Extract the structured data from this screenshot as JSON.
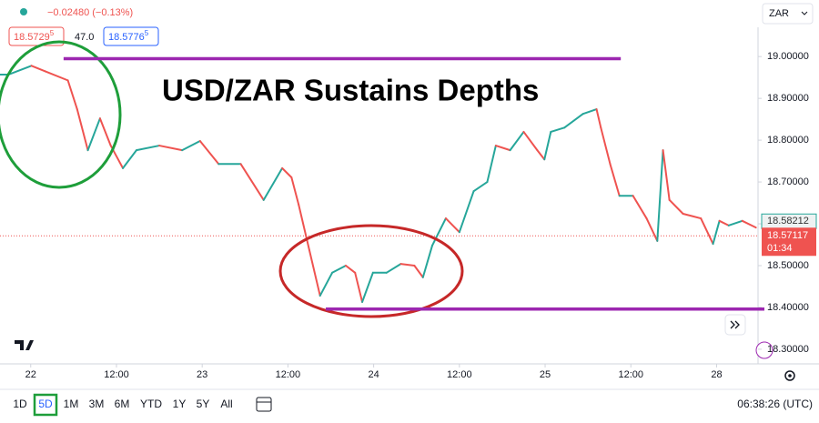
{
  "toolbar": {
    "change": "−0.02480 (−0.13%)",
    "bid": {
      "main": "18.5729",
      "pip": "5"
    },
    "spread": "47.0",
    "ask": {
      "main": "18.5776",
      "pip": "5"
    },
    "currency": "ZAR"
  },
  "chart_data": {
    "type": "line",
    "title": "USD/ZAR Sustains Depths",
    "x": [
      -4.3,
      -3.1,
      0.1,
      2.0,
      5.2,
      6.5,
      8.0,
      9.7,
      11.2,
      12.9,
      14.8,
      18.0,
      21.2,
      23.7,
      26.3,
      29.4,
      32.6,
      35.2,
      36.5,
      37.5,
      39.0,
      40.5,
      42.2,
      44.1,
      45.4,
      46.4,
      47.9,
      49.8,
      51.8,
      53.7,
      54.9,
      56.2,
      58.1,
      60.0,
      62.0,
      63.9,
      65.1,
      67.1,
      69.0,
      70.9,
      71.9,
      72.8,
      74.7,
      77.3,
      79.2,
      79.8,
      81.1,
      82.4,
      84.3,
      86.2,
      87.7,
      88.5,
      89.4,
      91.3,
      93.8,
      95.5,
      96.4,
      97.7,
      99.6,
      101.5
    ],
    "values": [
      18.957,
      18.957,
      18.978,
      18.965,
      18.943,
      18.874,
      18.776,
      18.852,
      18.787,
      18.733,
      18.776,
      18.787,
      18.776,
      18.798,
      18.743,
      18.743,
      18.657,
      18.733,
      18.711,
      18.646,
      18.537,
      18.428,
      18.483,
      18.5,
      18.483,
      18.413,
      18.483,
      18.483,
      18.504,
      18.5,
      18.472,
      18.548,
      18.613,
      18.58,
      18.678,
      18.7,
      18.787,
      18.776,
      18.82,
      18.776,
      18.754,
      18.82,
      18.83,
      18.863,
      18.874,
      18.83,
      18.743,
      18.667,
      18.667,
      18.613,
      18.559,
      18.776,
      18.657,
      18.624,
      18.613,
      18.552,
      18.607,
      18.596,
      18.607,
      18.591
    ],
    "up_color": "#26a69a",
    "down_color": "#ef5350",
    "xlim": [
      -4.3,
      101.8
    ],
    "ylim": [
      18.265,
      19.07
    ],
    "xticks": [
      {
        "value": 0,
        "label": "22"
      },
      {
        "value": 12,
        "label": "12:00"
      },
      {
        "value": 24,
        "label": "23"
      },
      {
        "value": 36,
        "label": "12:00"
      },
      {
        "value": 48,
        "label": "24"
      },
      {
        "value": 60,
        "label": "12:00"
      },
      {
        "value": 72,
        "label": "25"
      },
      {
        "value": 84,
        "label": "12:00"
      },
      {
        "value": 96,
        "label": "28"
      }
    ],
    "yticks": [
      {
        "value": 19.0,
        "label": "19.00000"
      },
      {
        "value": 18.9,
        "label": "18.90000"
      },
      {
        "value": 18.8,
        "label": "18.80000"
      },
      {
        "value": 18.7,
        "label": "18.70000"
      },
      {
        "value": 18.6,
        "label": "18.60000"
      },
      {
        "value": 18.5,
        "label": "18.50000"
      },
      {
        "value": 18.4,
        "label": "18.40000"
      },
      {
        "value": 18.3,
        "label": "18.30000"
      }
    ],
    "y_axis_side": "right",
    "grid": false,
    "levels": [
      {
        "value": 18.995,
        "x": [
          4.6,
          81.7
        ]
      },
      {
        "value": 18.396,
        "x": [
          41.3,
          101.8
        ]
      }
    ],
    "level_color": "#9c27b0",
    "reference_price": 18.58212,
    "last_price": {
      "value": 18.57117,
      "countdown": "01:34"
    }
  },
  "timeframes": [
    "1D",
    "5D",
    "1M",
    "3M",
    "6M",
    "YTD",
    "1Y",
    "5Y",
    "All"
  ],
  "active_timeframe": 1,
  "clock": "06:38:26 (UTC)"
}
